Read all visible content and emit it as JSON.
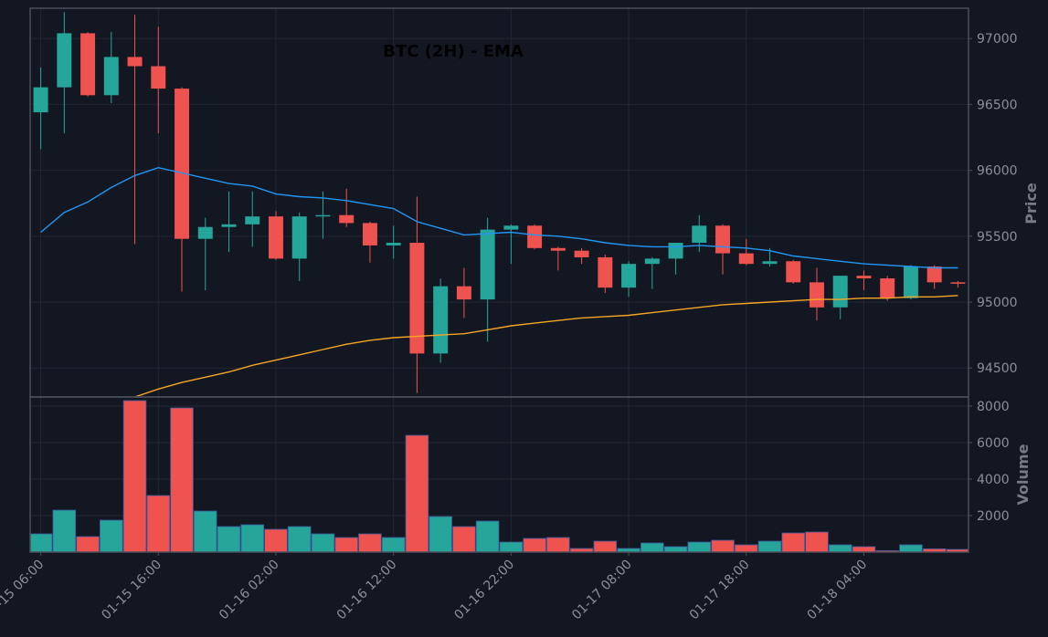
{
  "chart_data": {
    "type": "candlestick",
    "title": "BTC (2H) - EMA",
    "ylabel": "Price",
    "volume_ylabel": "Volume",
    "grid": true,
    "colors": {
      "background": "#131722",
      "grid": "#232734",
      "axis": "#4a4e5a",
      "tick_text": "#8a8f9c",
      "up": "#26a69a",
      "down": "#ef5350",
      "ema_fast": "#2196f3",
      "ema_slow": "#f5a623",
      "volume_edge": "#3d5a9e",
      "title": "#000000"
    },
    "ylim": [
      94280,
      97230
    ],
    "yticks": [
      94500,
      95000,
      95500,
      96000,
      96500,
      97000
    ],
    "volume_ylim": [
      0,
      8500
    ],
    "volume_yticks": [
      2000,
      4000,
      6000,
      8000
    ],
    "xlim": [
      -0.45,
      39.45
    ],
    "xticks": [
      {
        "index": 0,
        "label": "01-15 06:00"
      },
      {
        "index": 5,
        "label": "01-15 16:00"
      },
      {
        "index": 10,
        "label": "01-16 02:00"
      },
      {
        "index": 15,
        "label": "01-16 12:00"
      },
      {
        "index": 20,
        "label": "01-16 22:00"
      },
      {
        "index": 25,
        "label": "01-17 08:00"
      },
      {
        "index": 30,
        "label": "01-17 18:00"
      },
      {
        "index": 35,
        "label": "01-18 04:00"
      }
    ],
    "candles": [
      {
        "o": 96440,
        "h": 96780,
        "l": 96160,
        "c": 96630,
        "v": 1000
      },
      {
        "o": 96630,
        "h": 97200,
        "l": 96280,
        "c": 97040,
        "v": 2300
      },
      {
        "o": 97040,
        "h": 97050,
        "l": 96560,
        "c": 96570,
        "v": 850
      },
      {
        "o": 96570,
        "h": 97050,
        "l": 96510,
        "c": 96860,
        "v": 1750
      },
      {
        "o": 96860,
        "h": 97180,
        "l": 95440,
        "c": 96790,
        "v": 8300
      },
      {
        "o": 96790,
        "h": 97090,
        "l": 96280,
        "c": 96620,
        "v": 3100
      },
      {
        "o": 96620,
        "h": 96630,
        "l": 95080,
        "c": 95480,
        "v": 7900
      },
      {
        "o": 95480,
        "h": 95640,
        "l": 95090,
        "c": 95570,
        "v": 2250
      },
      {
        "o": 95570,
        "h": 95840,
        "l": 95380,
        "c": 95590,
        "v": 1400
      },
      {
        "o": 95590,
        "h": 95840,
        "l": 95420,
        "c": 95650,
        "v": 1500
      },
      {
        "o": 95650,
        "h": 95690,
        "l": 95320,
        "c": 95330,
        "v": 1250
      },
      {
        "o": 95330,
        "h": 95680,
        "l": 95160,
        "c": 95650,
        "v": 1400
      },
      {
        "o": 95650,
        "h": 95840,
        "l": 95480,
        "c": 95660,
        "v": 1000
      },
      {
        "o": 95660,
        "h": 95860,
        "l": 95570,
        "c": 95600,
        "v": 800
      },
      {
        "o": 95600,
        "h": 95610,
        "l": 95300,
        "c": 95430,
        "v": 1000
      },
      {
        "o": 95430,
        "h": 95580,
        "l": 95330,
        "c": 95450,
        "v": 800
      },
      {
        "o": 95450,
        "h": 95800,
        "l": 94310,
        "c": 94610,
        "v": 6400
      },
      {
        "o": 94610,
        "h": 95180,
        "l": 94540,
        "c": 95120,
        "v": 1950
      },
      {
        "o": 95120,
        "h": 95260,
        "l": 94880,
        "c": 95020,
        "v": 1400
      },
      {
        "o": 95020,
        "h": 95640,
        "l": 94700,
        "c": 95550,
        "v": 1700
      },
      {
        "o": 95550,
        "h": 95590,
        "l": 95290,
        "c": 95580,
        "v": 550
      },
      {
        "o": 95580,
        "h": 95590,
        "l": 95400,
        "c": 95410,
        "v": 750
      },
      {
        "o": 95410,
        "h": 95420,
        "l": 95240,
        "c": 95390,
        "v": 800
      },
      {
        "o": 95390,
        "h": 95410,
        "l": 95290,
        "c": 95340,
        "v": 200
      },
      {
        "o": 95340,
        "h": 95360,
        "l": 95070,
        "c": 95110,
        "v": 600
      },
      {
        "o": 95110,
        "h": 95310,
        "l": 95040,
        "c": 95290,
        "v": 200
      },
      {
        "o": 95290,
        "h": 95340,
        "l": 95100,
        "c": 95330,
        "v": 500
      },
      {
        "o": 95330,
        "h": 95450,
        "l": 95210,
        "c": 95450,
        "v": 300
      },
      {
        "o": 95450,
        "h": 95660,
        "l": 95380,
        "c": 95580,
        "v": 550
      },
      {
        "o": 95580,
        "h": 95590,
        "l": 95210,
        "c": 95370,
        "v": 650
      },
      {
        "o": 95370,
        "h": 95480,
        "l": 95280,
        "c": 95290,
        "v": 400
      },
      {
        "o": 95290,
        "h": 95410,
        "l": 95270,
        "c": 95310,
        "v": 600
      },
      {
        "o": 95310,
        "h": 95320,
        "l": 95140,
        "c": 95150,
        "v": 1050
      },
      {
        "o": 95150,
        "h": 95260,
        "l": 94860,
        "c": 94960,
        "v": 1100
      },
      {
        "o": 94960,
        "h": 95200,
        "l": 94870,
        "c": 95200,
        "v": 400
      },
      {
        "o": 95200,
        "h": 95240,
        "l": 95090,
        "c": 95180,
        "v": 300
      },
      {
        "o": 95180,
        "h": 95200,
        "l": 95010,
        "c": 95030,
        "v": 80
      },
      {
        "o": 95030,
        "h": 95280,
        "l": 95020,
        "c": 95270,
        "v": 400
      },
      {
        "o": 95270,
        "h": 95280,
        "l": 95100,
        "c": 95150,
        "v": 180
      },
      {
        "o": 95150,
        "h": 95160,
        "l": 95110,
        "c": 95140,
        "v": 150
      }
    ],
    "series": [
      {
        "values": [
          95530,
          95680,
          95760,
          95870,
          95960,
          96020,
          95980,
          95940,
          95900,
          95880,
          95820,
          95800,
          95790,
          95770,
          95740,
          95710,
          95610,
          95560,
          95510,
          95520,
          95530,
          95510,
          95500,
          95480,
          95450,
          95430,
          95420,
          95420,
          95430,
          95420,
          95410,
          95390,
          95350,
          95330,
          95310,
          95290,
          95280,
          95270,
          95260,
          95260
        ]
      },
      {
        "values": [
          null,
          null,
          null,
          null,
          94280,
          94340,
          94390,
          94430,
          94470,
          94520,
          94560,
          94600,
          94640,
          94680,
          94710,
          94730,
          94740,
          94750,
          94760,
          94790,
          94820,
          94840,
          94860,
          94880,
          94890,
          94900,
          94920,
          94940,
          94960,
          94980,
          94990,
          95000,
          95010,
          95020,
          95020,
          95030,
          95030,
          95040,
          95040,
          95050
        ]
      }
    ]
  }
}
